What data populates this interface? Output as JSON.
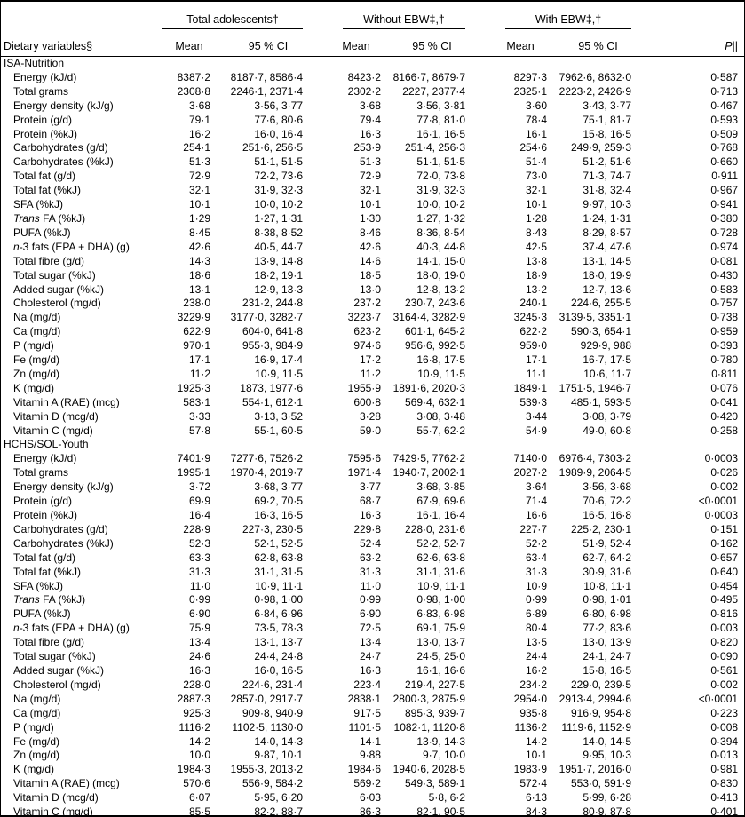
{
  "page": {
    "background": "#ffffff",
    "rule_color": "#000000"
  },
  "table": {
    "header": {
      "variable_col": "Dietary variables§",
      "groups": [
        {
          "label": "Total adolescents†",
          "mean": "Mean",
          "ci": "95 % CI"
        },
        {
          "label": "Without EBW‡,†",
          "mean": "Mean",
          "ci": "95 % CI"
        },
        {
          "label": "With EBW‡,†",
          "mean": "Mean",
          "ci": "95 % CI"
        }
      ],
      "p_italic": "P",
      "p_rest": "||"
    },
    "sections": [
      {
        "title": "ISA-Nutrition",
        "rows": [
          {
            "var": "Energy (kJ/d)",
            "cells": [
              "8387·2",
              "8187·7, 8586·4",
              "8423·2",
              "8166·7, 8679·7",
              "8297·3",
              "7962·6, 8632·0",
              "0·587"
            ]
          },
          {
            "var": "Total grams",
            "cells": [
              "2308·8",
              "2246·1, 2371·4",
              "2302·2",
              "2227, 2377·4",
              "2325·1",
              "2223·2, 2426·9",
              "0·713"
            ]
          },
          {
            "var": "Energy density (kJ/g)",
            "cells": [
              "3·68",
              "3·56, 3·77",
              "3·68",
              "3·56, 3·81",
              "3·60",
              "3·43, 3·77",
              "0·467"
            ]
          },
          {
            "var": "Protein (g/d)",
            "cells": [
              "79·1",
              "77·6, 80·6",
              "79·4",
              "77·8, 81·0",
              "78·4",
              "75·1, 81·7",
              "0·593"
            ]
          },
          {
            "var": "Protein (%kJ)",
            "cells": [
              "16·2",
              "16·0, 16·4",
              "16·3",
              "16·1, 16·5",
              "16·1",
              "15·8, 16·5",
              "0·509"
            ]
          },
          {
            "var": "Carbohydrates (g/d)",
            "cells": [
              "254·1",
              "251·6, 256·5",
              "253·9",
              "251·4, 256·3",
              "254·6",
              "249·9, 259·3",
              "0·768"
            ]
          },
          {
            "var": "Carbohydrates (%kJ)",
            "cells": [
              "51·3",
              "51·1, 51·5",
              "51·3",
              "51·1, 51·5",
              "51·4",
              "51·2, 51·6",
              "0·660"
            ]
          },
          {
            "var": "Total fat (g/d)",
            "cells": [
              "72·9",
              "72·2, 73·6",
              "72·9",
              "72·0, 73·8",
              "73·0",
              "71·3, 74·7",
              "0·911"
            ]
          },
          {
            "var": "Total fat (%kJ)",
            "cells": [
              "32·1",
              "31·9, 32·3",
              "32·1",
              "31·9, 32·3",
              "32·1",
              "31·8, 32·4",
              "0·967"
            ]
          },
          {
            "var": "SFA (%kJ)",
            "cells": [
              "10·1",
              "10·0, 10·2",
              "10·1",
              "10·0, 10·2",
              "10·1",
              "9·97, 10·3",
              "0·941"
            ]
          },
          {
            "var_italic": "Trans",
            "var": " FA (%kJ)",
            "cells": [
              "1·29",
              "1·27, 1·31",
              "1·30",
              "1·27, 1·32",
              "1·28",
              "1·24, 1·31",
              "0·380"
            ]
          },
          {
            "var": "PUFA (%kJ)",
            "cells": [
              "8·45",
              "8·38, 8·52",
              "8·46",
              "8·36, 8·54",
              "8·43",
              "8·29, 8·57",
              "0·728"
            ]
          },
          {
            "var_italic": "n",
            "var": "-3 fats (EPA + DHA) (g)",
            "cells": [
              "42·6",
              "40·5, 44·7",
              "42·6",
              "40·3, 44·8",
              "42·5",
              "37·4, 47·6",
              "0·974"
            ]
          },
          {
            "var": "Total fibre (g/d)",
            "cells": [
              "14·3",
              "13·9, 14·8",
              "14·6",
              "14·1, 15·0",
              "13·8",
              "13·1, 14·5",
              "0·081"
            ]
          },
          {
            "var": "Total sugar (%kJ)",
            "cells": [
              "18·6",
              "18·2, 19·1",
              "18·5",
              "18·0, 19·0",
              "18·9",
              "18·0, 19·9",
              "0·430"
            ]
          },
          {
            "var": "Added sugar (%kJ)",
            "cells": [
              "13·1",
              "12·9, 13·3",
              "13·0",
              "12·8, 13·2",
              "13·2",
              "12·7, 13·6",
              "0·583"
            ]
          },
          {
            "var": "Cholesterol (mg/d)",
            "cells": [
              "238·0",
              "231·2, 244·8",
              "237·2",
              "230·7, 243·6",
              "240·1",
              "224·6, 255·5",
              "0·757"
            ]
          },
          {
            "var": "Na (mg/d)",
            "cells": [
              "3229·9",
              "3177·0, 3282·7",
              "3223·7",
              "3164·4, 3282·9",
              "3245·3",
              "3139·5, 3351·1",
              "0·738"
            ]
          },
          {
            "var": "Ca (mg/d)",
            "cells": [
              "622·9",
              "604·0, 641·8",
              "623·2",
              "601·1, 645·2",
              "622·2",
              "590·3, 654·1",
              "0·959"
            ]
          },
          {
            "var": "P (mg/d)",
            "cells": [
              "970·1",
              "955·3, 984·9",
              "974·6",
              "956·6, 992·5",
              "959·0",
              "929·9, 988",
              "0·393"
            ]
          },
          {
            "var": "Fe (mg/d)",
            "cells": [
              "17·1",
              "16·9, 17·4",
              "17·2",
              "16·8, 17·5",
              "17·1",
              "16·7, 17·5",
              "0·780"
            ]
          },
          {
            "var": "Zn (mg/d)",
            "cells": [
              "11·2",
              "10·9, 11·5",
              "11·2",
              "10·9, 11·5",
              "11·1",
              "10·6, 11·7",
              "0·811"
            ]
          },
          {
            "var": "K (mg/d)",
            "cells": [
              "1925·3",
              "1873, 1977·6",
              "1955·9",
              "1891·6, 2020·3",
              "1849·1",
              "1751·5, 1946·7",
              "0·076"
            ]
          },
          {
            "var": "Vitamin A (RAE) (mcg)",
            "cells": [
              "583·1",
              "554·1, 612·1",
              "600·8",
              "569·4, 632·1",
              "539·3",
              "485·1, 593·5",
              "0·041"
            ]
          },
          {
            "var": "Vitamin D (mcg/d)",
            "cells": [
              "3·33",
              "3·13, 3·52",
              "3·28",
              "3·08, 3·48",
              "3·44",
              "3·08, 3·79",
              "0·420"
            ]
          },
          {
            "var": "Vitamin C (mg/d)",
            "cells": [
              "57·8",
              "55·1, 60·5",
              "59·0",
              "55·7, 62·2",
              "54·9",
              "49·0, 60·8",
              "0·258"
            ]
          }
        ]
      },
      {
        "title": "HCHS/SOL-Youth",
        "rows": [
          {
            "var": "Energy (kJ/d)",
            "cells": [
              "7401·9",
              "7277·6, 7526·2",
              "7595·6",
              "7429·5, 7762·2",
              "7140·0",
              "6976·4, 7303·2",
              "0·0003"
            ]
          },
          {
            "var": "Total grams",
            "cells": [
              "1995·1",
              "1970·4, 2019·7",
              "1971·4",
              "1940·7, 2002·1",
              "2027·2",
              "1989·9, 2064·5",
              "0·026"
            ]
          },
          {
            "var": "Energy density (kJ/g)",
            "cells": [
              "3·72",
              "3·68, 3·77",
              "3·77",
              "3·68, 3·85",
              "3·64",
              "3·56, 3·68",
              "0·002"
            ]
          },
          {
            "var": "Protein (g/d)",
            "cells": [
              "69·9",
              "69·2, 70·5",
              "68·7",
              "67·9, 69·6",
              "71·4",
              "70·6, 72·2",
              "<0·0001"
            ]
          },
          {
            "var": "Protein (%kJ)",
            "cells": [
              "16·4",
              "16·3, 16·5",
              "16·3",
              "16·1, 16·4",
              "16·6",
              "16·5, 16·8",
              "0·0003"
            ]
          },
          {
            "var": "Carbohydrates (g/d)",
            "cells": [
              "228·9",
              "227·3, 230·5",
              "229·8",
              "228·0, 231·6",
              "227·7",
              "225·2, 230·1",
              "0·151"
            ]
          },
          {
            "var": "Carbohydrates (%kJ)",
            "cells": [
              "52·3",
              "52·1, 52·5",
              "52·4",
              "52·2, 52·7",
              "52·2",
              "51·9, 52·4",
              "0·162"
            ]
          },
          {
            "var": "Total fat (g/d)",
            "cells": [
              "63·3",
              "62·8, 63·8",
              "63·2",
              "62·6, 63·8",
              "63·4",
              "62·7, 64·2",
              "0·657"
            ]
          },
          {
            "var": "Total fat (%kJ)",
            "cells": [
              "31·3",
              "31·1, 31·5",
              "31·3",
              "31·1, 31·6",
              "31·3",
              "30·9, 31·6",
              "0·640"
            ]
          },
          {
            "var": "SFA (%kJ)",
            "cells": [
              "11·0",
              "10·9, 11·1",
              "11·0",
              "10·9, 11·1",
              "10·9",
              "10·8, 11·1",
              "0·454"
            ]
          },
          {
            "var_italic": "Trans",
            "var": " FA (%kJ)",
            "cells": [
              "0·99",
              "0·98, 1·00",
              "0·99",
              "0·98, 1·00",
              "0·99",
              "0·98, 1·01",
              "0·495"
            ]
          },
          {
            "var": "PUFA (%kJ)",
            "cells": [
              "6·90",
              "6·84, 6·96",
              "6·90",
              "6·83, 6·98",
              "6·89",
              "6·80, 6·98",
              "0·816"
            ]
          },
          {
            "var_italic": "n",
            "var": "-3 fats (EPA + DHA) (g)",
            "cells": [
              "75·9",
              "73·5, 78·3",
              "72·5",
              "69·1, 75·9",
              "80·4",
              "77·2, 83·6",
              "0·003"
            ]
          },
          {
            "var": "Total fibre (g/d)",
            "cells": [
              "13·4",
              "13·1, 13·7",
              "13·4",
              "13·0, 13·7",
              "13·5",
              "13·0, 13·9",
              "0·820"
            ]
          },
          {
            "var": "Total sugar (%kJ)",
            "cells": [
              "24·6",
              "24·4, 24·8",
              "24·7",
              "24·5, 25·0",
              "24·4",
              "24·1, 24·7",
              "0·090"
            ]
          },
          {
            "var": "Added sugar (%kJ)",
            "cells": [
              "16·3",
              "16·0, 16·5",
              "16·3",
              "16·1, 16·6",
              "16·2",
              "15·8, 16·5",
              "0·561"
            ]
          },
          {
            "var": "Cholesterol (mg/d)",
            "cells": [
              "228·0",
              "224·6, 231·4",
              "223·4",
              "219·4, 227·5",
              "234·2",
              "229·0, 239·5",
              "0·002"
            ]
          },
          {
            "var": "Na (mg/d)",
            "cells": [
              "2887·3",
              "2857·0, 2917·7",
              "2838·1",
              "2800·3, 2875·9",
              "2954·0",
              "2913·4, 2994·6",
              "<0·0001"
            ]
          },
          {
            "var": "Ca (mg/d)",
            "cells": [
              "925·3",
              "909·8, 940·9",
              "917·5",
              "895·3, 939·7",
              "935·8",
              "916·9, 954·8",
              "0·223"
            ]
          },
          {
            "var": "P (mg/d)",
            "cells": [
              "1116·2",
              "1102·5, 1130·0",
              "1101·5",
              "1082·1, 1120·8",
              "1136·2",
              "1119·6, 1152·9",
              "0·008"
            ]
          },
          {
            "var": "Fe (mg/d)",
            "cells": [
              "14·2",
              "14·0, 14·3",
              "14·1",
              "13·9, 14·3",
              "14·2",
              "14·0, 14·5",
              "0·394"
            ]
          },
          {
            "var": "Zn (mg/d)",
            "cells": [
              "10·0",
              "9·87, 10·1",
              "9·88",
              "9·7, 10·0",
              "10·1",
              "9·95, 10·3",
              "0·013"
            ]
          },
          {
            "var": "K (mg/d)",
            "cells": [
              "1984·3",
              "1955·3, 2013·2",
              "1984·6",
              "1940·6, 2028·5",
              "1983·9",
              "1951·7, 2016·0",
              "0·981"
            ]
          },
          {
            "var": "Vitamin A (RAE) (mcg)",
            "cells": [
              "570·6",
              "556·9, 584·2",
              "569·2",
              "549·3, 589·1",
              "572·4",
              "553·0, 591·9",
              "0·830"
            ]
          },
          {
            "var": "Vitamin D (mcg/d)",
            "cells": [
              "6·07",
              "5·95, 6·20",
              "6·03",
              "5·8, 6·2",
              "6·13",
              "5·99, 6·28",
              "0·413"
            ]
          },
          {
            "var": "Vitamin C (mg/d)",
            "cells": [
              "85·5",
              "82·2, 88·7",
              "86·3",
              "82·1, 90·5",
              "84·3",
              "80·9, 87·8",
              "0·401"
            ]
          }
        ]
      }
    ]
  }
}
